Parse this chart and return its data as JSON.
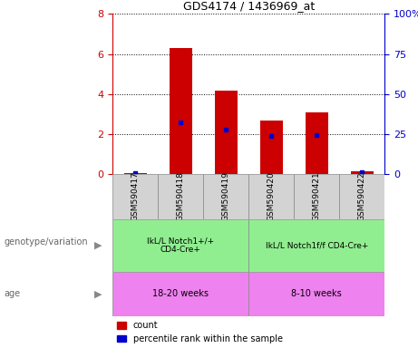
{
  "title": "GDS4174 / 1436969_at",
  "samples": [
    "GSM590417",
    "GSM590418",
    "GSM590419",
    "GSM590420",
    "GSM590421",
    "GSM590422"
  ],
  "red_values": [
    0.05,
    6.3,
    4.15,
    2.65,
    3.1,
    0.15
  ],
  "blue_values": [
    0.05,
    2.6,
    2.2,
    1.9,
    1.95,
    0.1
  ],
  "ylim_left": [
    0,
    8
  ],
  "ylim_right": [
    0,
    100
  ],
  "yticks_left": [
    0,
    2,
    4,
    6,
    8
  ],
  "yticks_right": [
    0,
    25,
    50,
    75,
    100
  ],
  "ytick_labels_right": [
    "0",
    "25",
    "50",
    "75",
    "100%"
  ],
  "red_color": "#cc0000",
  "blue_color": "#0000cc",
  "group1_label": "IkL/L Notch1+/+\nCD4-Cre+",
  "group2_label": "IkL/L Notch1f/f CD4-Cre+",
  "age1_label": "18-20 weeks",
  "age2_label": "8-10 weeks",
  "genotype_label": "genotype/variation",
  "age_label": "age",
  "legend_count": "count",
  "legend_pct": "percentile rank within the sample",
  "group1_color": "#90ee90",
  "group2_color": "#90ee90",
  "age_color": "#ee82ee",
  "tick_color_left": "#cc0000",
  "tick_color_right": "#0000cc",
  "bar_width": 0.5,
  "bg_color": "#ffffff"
}
